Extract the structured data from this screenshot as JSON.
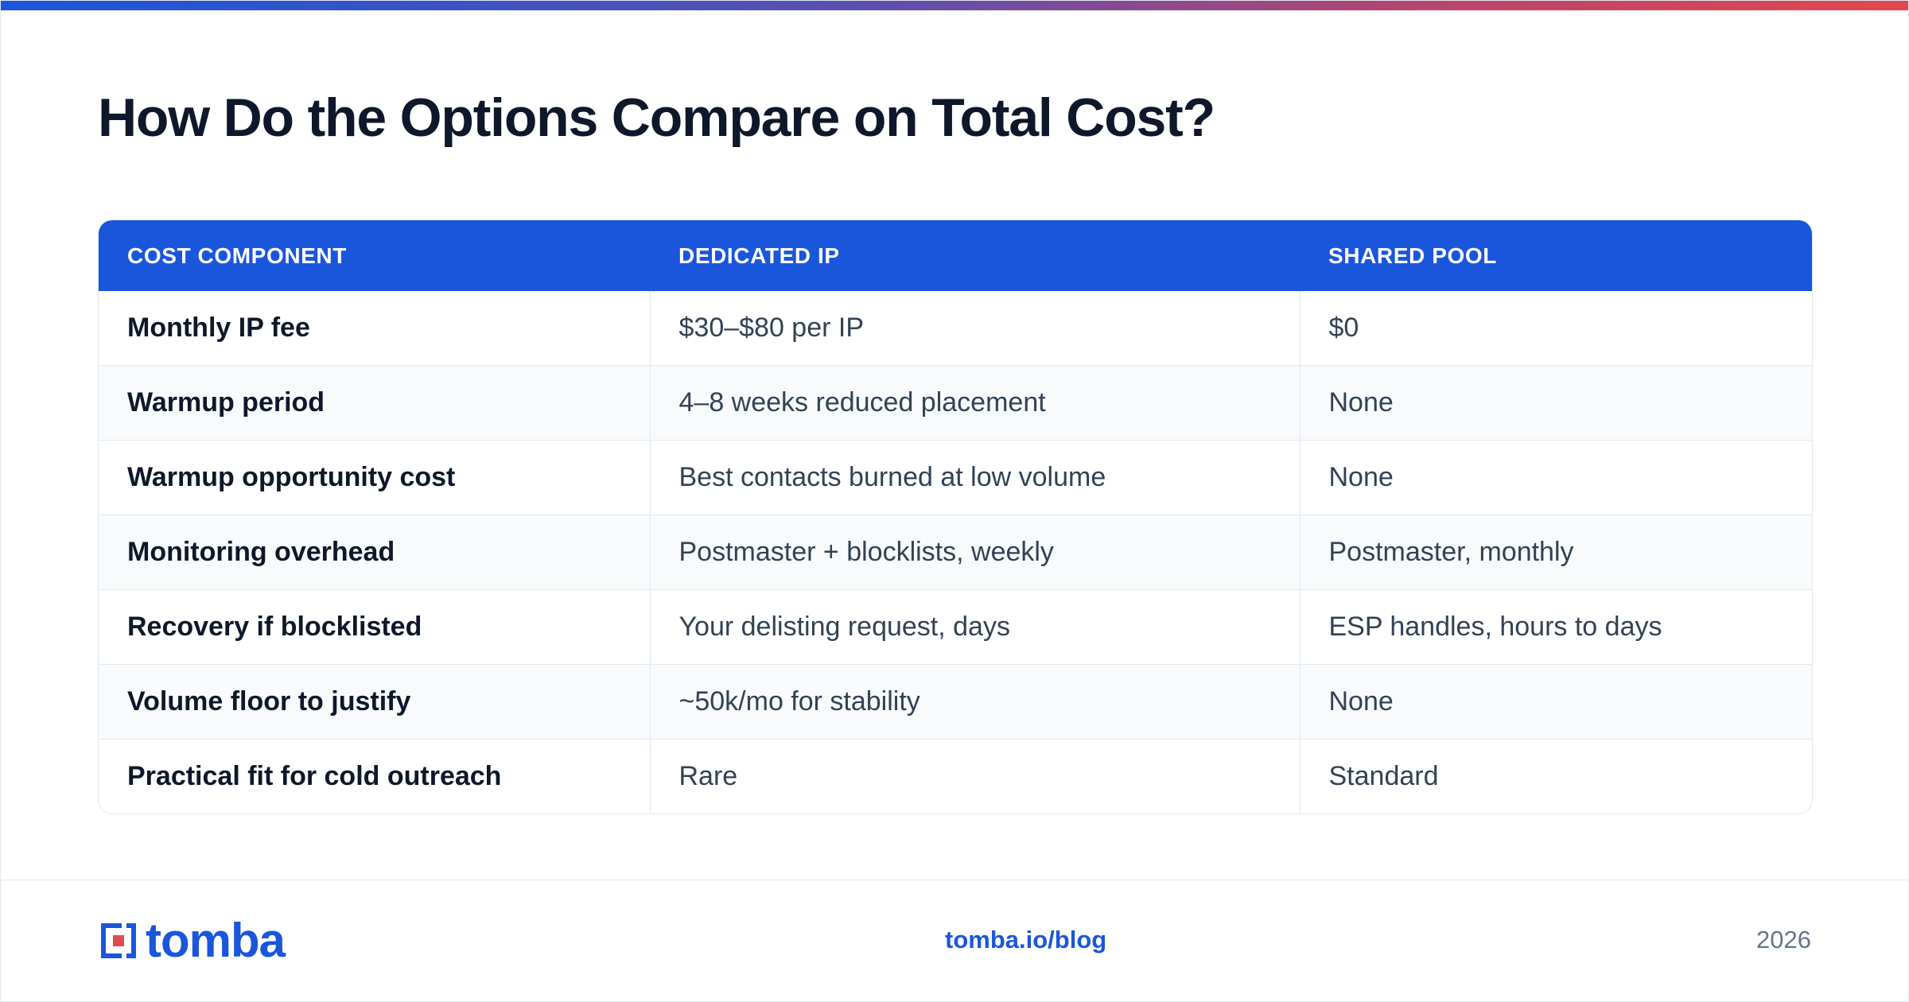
{
  "title": "How Do the Options Compare on Total Cost?",
  "table": {
    "headers": [
      "COST COMPONENT",
      "DEDICATED IP",
      "SHARED POOL"
    ],
    "rows": [
      [
        "Monthly IP fee",
        "$30–$80 per IP",
        "$0"
      ],
      [
        "Warmup period",
        "4–8 weeks reduced placement",
        "None"
      ],
      [
        "Warmup opportunity cost",
        "Best contacts burned at low volume",
        "None"
      ],
      [
        "Monitoring overhead",
        "Postmaster + blocklists, weekly",
        "Postmaster, monthly"
      ],
      [
        "Recovery if blocklisted",
        "Your delisting request, days",
        "ESP handles, hours to days"
      ],
      [
        "Volume floor to justify",
        "~50k/mo for stability",
        "None"
      ],
      [
        "Practical fit for cold outreach",
        "Rare",
        "Standard"
      ]
    ]
  },
  "footer": {
    "logo_text": "tomba",
    "site": "tomba.io/blog",
    "year": "2026"
  },
  "colors": {
    "accent": "#1a56db",
    "logo_red": "#e3474f",
    "header_text": "#ffffff"
  }
}
